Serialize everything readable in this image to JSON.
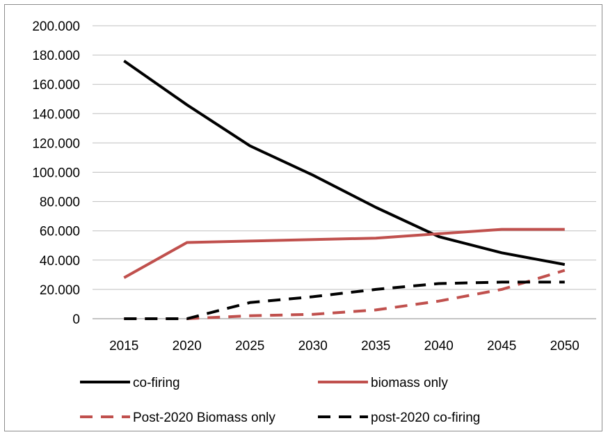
{
  "chart_data": {
    "type": "line",
    "title": "",
    "xlabel": "",
    "ylabel": "",
    "categories": [
      "2015",
      "2020",
      "2025",
      "2030",
      "2035",
      "2040",
      "2045",
      "2050"
    ],
    "ylim": [
      0,
      200000
    ],
    "y_ticks": [
      0,
      20000,
      40000,
      60000,
      80000,
      100000,
      120000,
      140000,
      160000,
      180000,
      200000
    ],
    "y_tick_labels": [
      "0",
      "20.000",
      "40.000",
      "60.000",
      "80.000",
      "100.000",
      "120.000",
      "140.000",
      "160.000",
      "180.000",
      "200.000"
    ],
    "grid": true,
    "legend_position": "bottom",
    "series": [
      {
        "name": "co-firing",
        "color": "#000000",
        "dash": "solid",
        "values": [
          176000,
          146000,
          118000,
          98000,
          76000,
          56000,
          45000,
          37000
        ]
      },
      {
        "name": "biomass only",
        "color": "#c0504d",
        "dash": "solid",
        "values": [
          28000,
          52000,
          53000,
          54000,
          55000,
          58000,
          61000,
          61000
        ]
      },
      {
        "name": "Post-2020 Biomass only",
        "color": "#c0504d",
        "dash": "dashed",
        "values": [
          0,
          0,
          2000,
          3000,
          6000,
          12000,
          20000,
          33000
        ]
      },
      {
        "name": "post-2020 co-firing",
        "color": "#000000",
        "dash": "dashed",
        "values": [
          0,
          0,
          11000,
          15000,
          20000,
          24000,
          25000,
          25000
        ]
      }
    ]
  }
}
